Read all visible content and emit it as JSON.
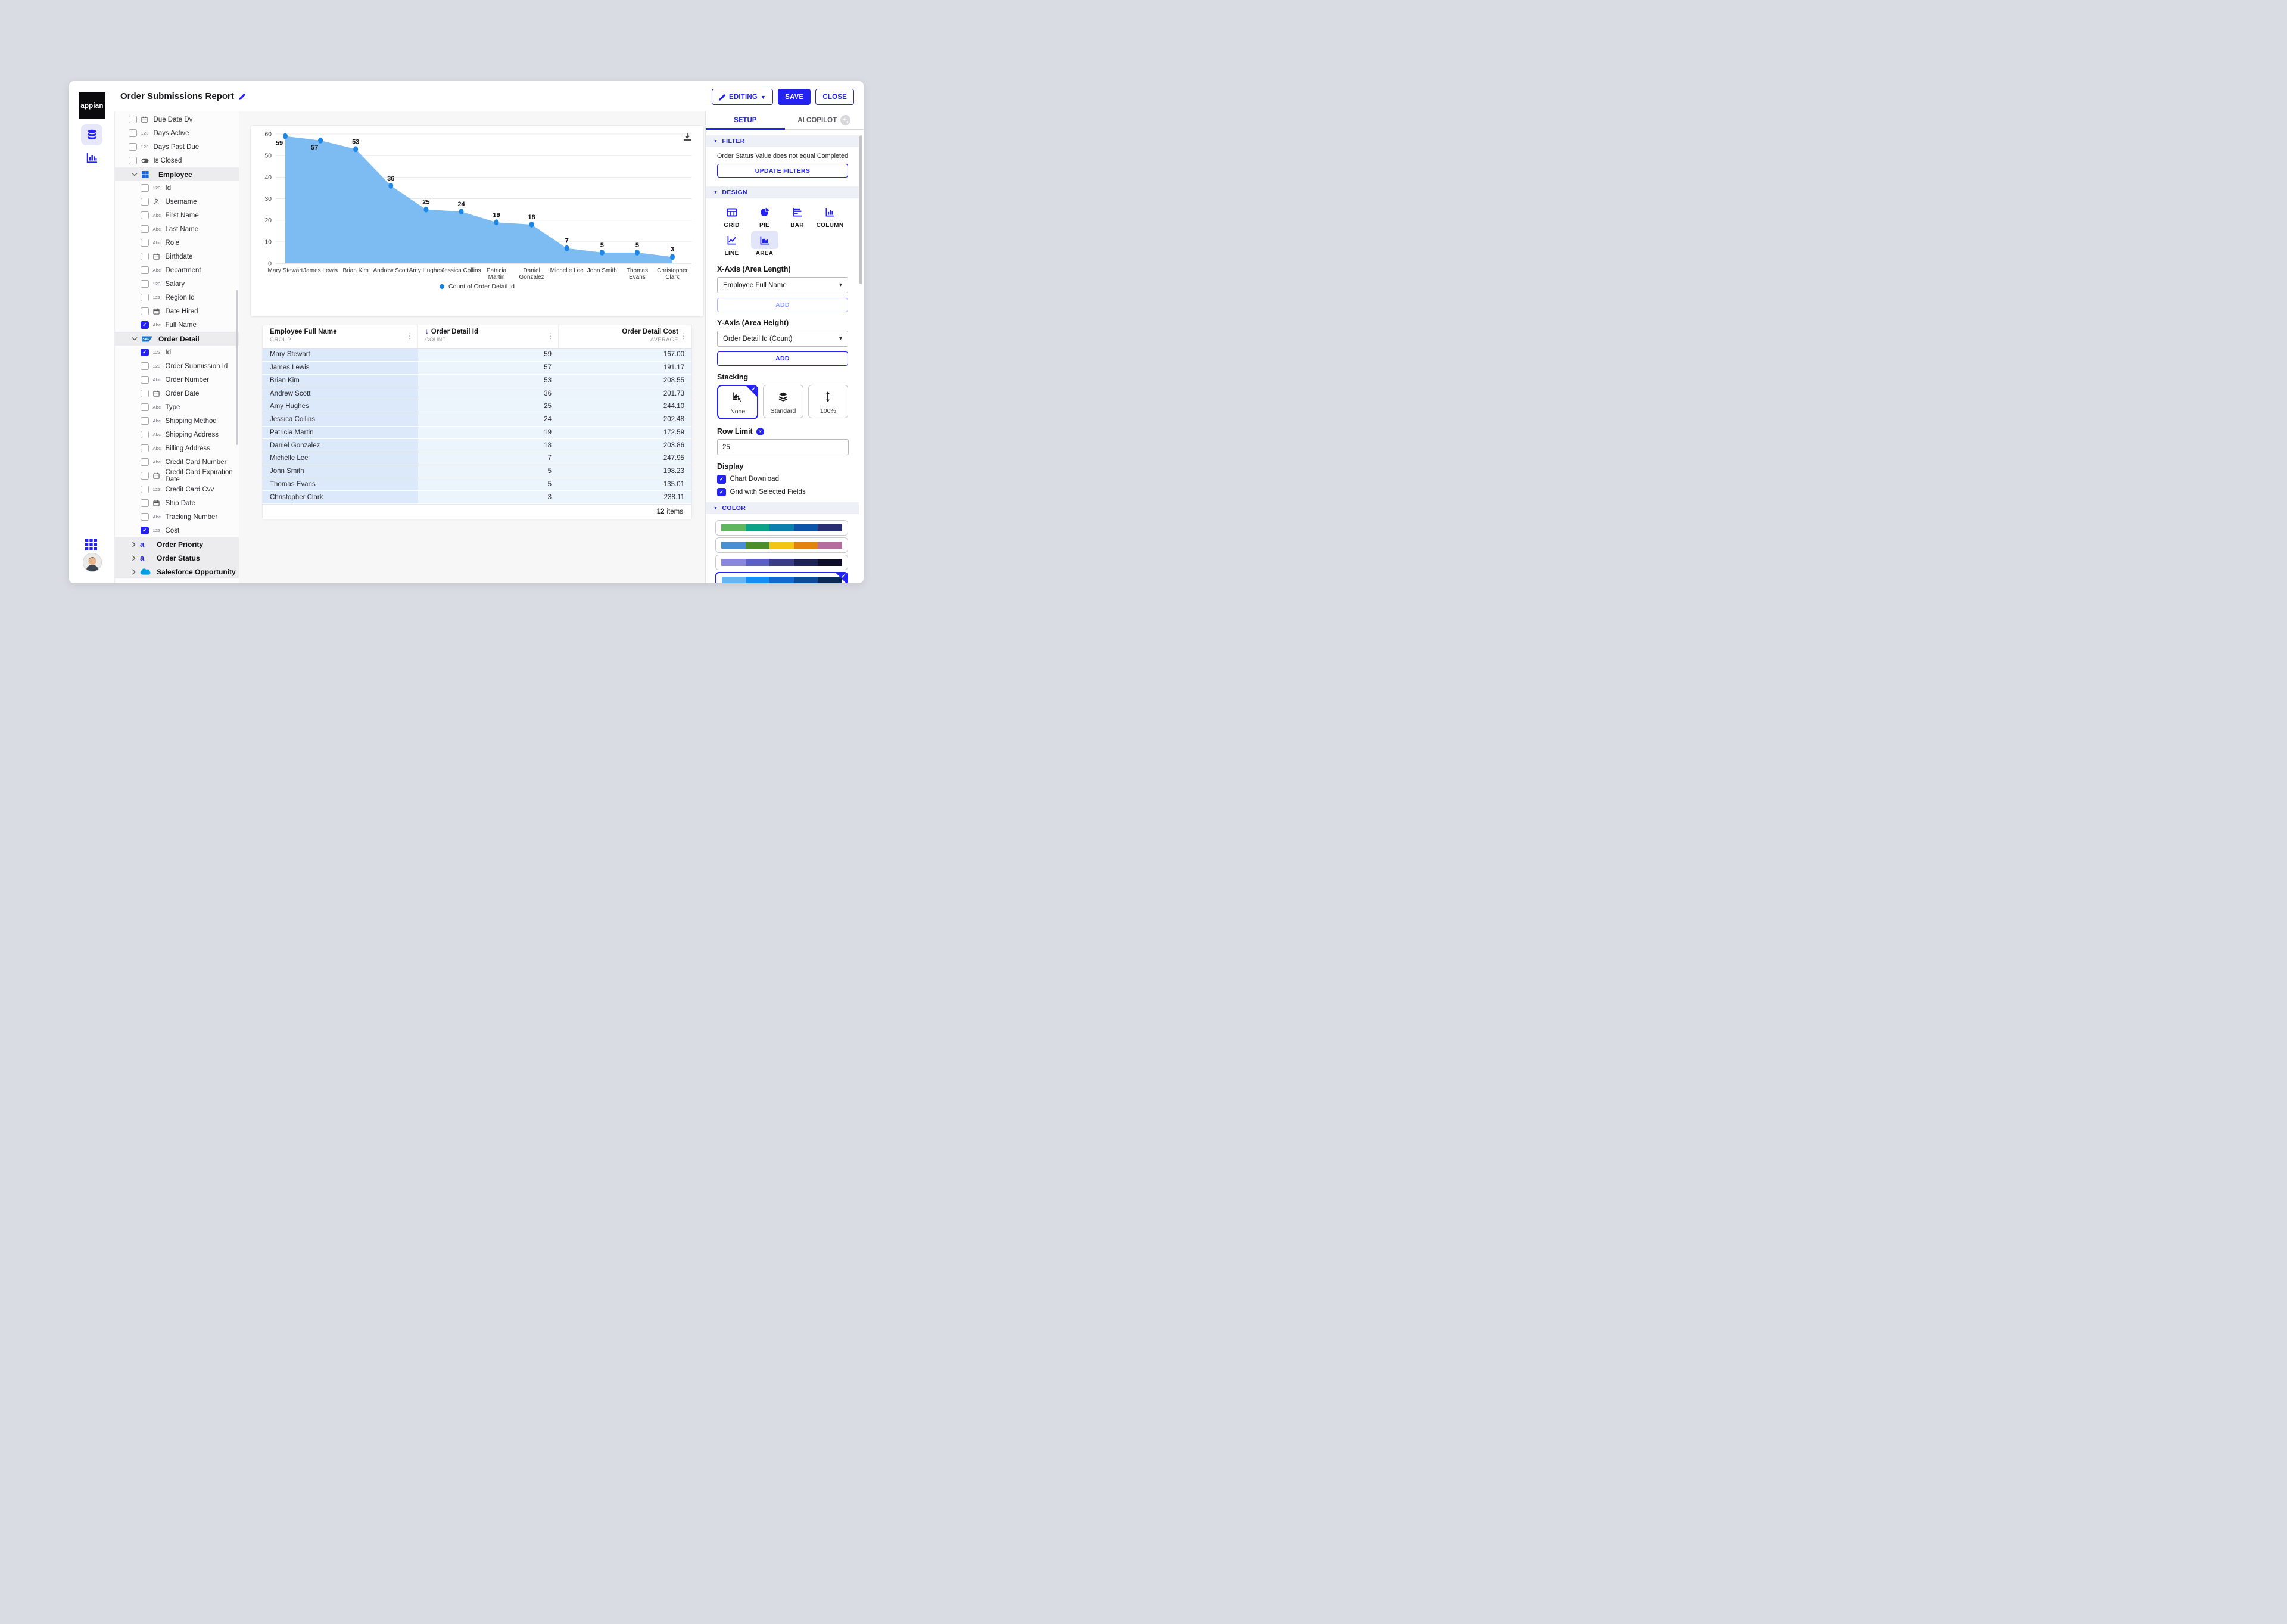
{
  "window": {
    "title": "Order Submissions Report"
  },
  "header": {
    "editing": "EDITING",
    "save": "SAVE",
    "close": "CLOSE"
  },
  "fields_panel": {
    "items": [
      {
        "kind": "field",
        "level": 0,
        "type": "date",
        "label": "Due Date Dv",
        "checked": false
      },
      {
        "kind": "field",
        "level": 0,
        "type": "number",
        "label": "Days Active",
        "checked": false
      },
      {
        "kind": "field",
        "level": 0,
        "type": "number",
        "label": "Days Past Due",
        "checked": false
      },
      {
        "kind": "field",
        "level": 0,
        "type": "boolean",
        "label": "Is Closed",
        "checked": false
      },
      {
        "kind": "section",
        "icon": "windows",
        "label": "Employee",
        "expanded": true
      },
      {
        "kind": "field",
        "level": 1,
        "type": "number",
        "label": "Id",
        "checked": false
      },
      {
        "kind": "field",
        "level": 1,
        "type": "user",
        "label": "Username",
        "checked": false
      },
      {
        "kind": "field",
        "level": 1,
        "type": "text",
        "label": "First Name",
        "checked": false
      },
      {
        "kind": "field",
        "level": 1,
        "type": "text",
        "label": "Last Name",
        "checked": false
      },
      {
        "kind": "field",
        "level": 1,
        "type": "text",
        "label": "Role",
        "checked": false
      },
      {
        "kind": "field",
        "level": 1,
        "type": "date",
        "label": "Birthdate",
        "checked": false
      },
      {
        "kind": "field",
        "level": 1,
        "type": "text",
        "label": "Department",
        "checked": false
      },
      {
        "kind": "field",
        "level": 1,
        "type": "number",
        "label": "Salary",
        "checked": false
      },
      {
        "kind": "field",
        "level": 1,
        "type": "number",
        "label": "Region Id",
        "checked": false
      },
      {
        "kind": "field",
        "level": 1,
        "type": "date",
        "label": "Date Hired",
        "checked": false
      },
      {
        "kind": "field",
        "level": 1,
        "type": "text",
        "label": "Full Name",
        "checked": true
      },
      {
        "kind": "section",
        "icon": "sap",
        "label": "Order Detail",
        "expanded": true
      },
      {
        "kind": "field",
        "level": 1,
        "type": "number",
        "label": "Id",
        "checked": true
      },
      {
        "kind": "field",
        "level": 1,
        "type": "number",
        "label": "Order Submission Id",
        "checked": false
      },
      {
        "kind": "field",
        "level": 1,
        "type": "text",
        "label": "Order Number",
        "checked": false
      },
      {
        "kind": "field",
        "level": 1,
        "type": "date",
        "label": "Order Date",
        "checked": false
      },
      {
        "kind": "field",
        "level": 1,
        "type": "text",
        "label": "Type",
        "checked": false
      },
      {
        "kind": "field",
        "level": 1,
        "type": "text",
        "label": "Shipping Method",
        "checked": false
      },
      {
        "kind": "field",
        "level": 1,
        "type": "text",
        "label": "Shipping Address",
        "checked": false
      },
      {
        "kind": "field",
        "level": 1,
        "type": "text",
        "label": "Billing Address",
        "checked": false
      },
      {
        "kind": "field",
        "level": 1,
        "type": "text",
        "label": "Credit Card Number",
        "checked": false
      },
      {
        "kind": "field",
        "level": 1,
        "type": "date",
        "label": "Credit Card Expiration Date",
        "checked": false
      },
      {
        "kind": "field",
        "level": 1,
        "type": "number",
        "label": "Credit Card Cvv",
        "checked": false
      },
      {
        "kind": "field",
        "level": 1,
        "type": "date",
        "label": "Ship Date",
        "checked": false
      },
      {
        "kind": "field",
        "level": 1,
        "type": "text",
        "label": "Tracking Number",
        "checked": false
      },
      {
        "kind": "field",
        "level": 1,
        "type": "number",
        "label": "Cost",
        "checked": true
      },
      {
        "kind": "section",
        "icon": "appian",
        "label": "Order Priority",
        "expanded": false
      },
      {
        "kind": "section",
        "icon": "appian",
        "label": "Order Status",
        "expanded": false
      },
      {
        "kind": "section",
        "icon": "salesforce",
        "label": "Salesforce Opportunity",
        "expanded": false
      }
    ]
  },
  "chart_data": {
    "type": "area",
    "categories": [
      "Mary Stewart",
      "James Lewis",
      "Brian Kim",
      "Andrew Scott",
      "Amy Hughes",
      "Jessica Collins",
      "Patricia Martin",
      "Daniel Gonzalez",
      "Michelle Lee",
      "John Smith",
      "Thomas Evans",
      "Christopher Clark"
    ],
    "values": [
      59,
      57,
      53,
      36,
      25,
      24,
      19,
      18,
      7,
      5,
      5,
      3
    ],
    "series_name": "Count of Order Detail Id",
    "title": "",
    "xlabel": "",
    "ylabel": "",
    "ylim": [
      0,
      60
    ],
    "ytick_step": 10,
    "grid": true,
    "legend_position": "bottom",
    "area_color": "#7dbcf2",
    "marker_color": "#1e87e6"
  },
  "grid_card": {
    "columns": [
      {
        "title": "Employee Full Name",
        "subtitle": "GROUP",
        "align": "left",
        "sorted": false
      },
      {
        "title": "Order Detail Id",
        "subtitle": "COUNT",
        "align": "left",
        "sorted": true
      },
      {
        "title": "Order Detail Cost",
        "subtitle": "AVERAGE",
        "align": "right",
        "sorted": false
      }
    ],
    "rows": [
      [
        "Mary Stewart",
        "59",
        "167.00"
      ],
      [
        "James Lewis",
        "57",
        "191.17"
      ],
      [
        "Brian Kim",
        "53",
        "208.55"
      ],
      [
        "Andrew Scott",
        "36",
        "201.73"
      ],
      [
        "Amy Hughes",
        "25",
        "244.10"
      ],
      [
        "Jessica Collins",
        "24",
        "202.48"
      ],
      [
        "Patricia Martin",
        "19",
        "172.59"
      ],
      [
        "Daniel Gonzalez",
        "18",
        "203.86"
      ],
      [
        "Michelle Lee",
        "7",
        "247.95"
      ],
      [
        "John Smith",
        "5",
        "198.23"
      ],
      [
        "Thomas Evans",
        "5",
        "135.01"
      ],
      [
        "Christopher Clark",
        "3",
        "238.11"
      ]
    ],
    "footer": {
      "count": "12",
      "label": "items"
    }
  },
  "setup_panel": {
    "tabs": {
      "setup": "SETUP",
      "copilot": "AI COPILOT"
    },
    "filter": {
      "section": "FILTER",
      "description": "Order Status Value does not equal Completed",
      "update_button": "UPDATE FILTERS"
    },
    "design": {
      "section": "DESIGN",
      "options": [
        {
          "id": "grid",
          "label": "GRID",
          "selected": false
        },
        {
          "id": "pie",
          "label": "PIE",
          "selected": false
        },
        {
          "id": "bar",
          "label": "BAR",
          "selected": false
        },
        {
          "id": "column",
          "label": "COLUMN",
          "selected": false
        },
        {
          "id": "line",
          "label": "LINE",
          "selected": false
        },
        {
          "id": "area",
          "label": "AREA",
          "selected": true
        }
      ]
    },
    "x_axis": {
      "label": "X-Axis (Area Length)",
      "value": "Employee Full Name",
      "add_button": "ADD"
    },
    "y_axis": {
      "label": "Y-Axis (Area Height)",
      "value": "Order Detail Id (Count)",
      "add_button": "ADD"
    },
    "stacking": {
      "label": "Stacking",
      "options": [
        {
          "id": "none",
          "label": "None",
          "selected": true
        },
        {
          "id": "standard",
          "label": "Standard",
          "selected": false
        },
        {
          "id": "percent",
          "label": "100%",
          "selected": false
        }
      ]
    },
    "row_limit": {
      "label": "Row Limit",
      "value": "25"
    },
    "display": {
      "label": "Display",
      "options": [
        {
          "label": "Chart Download",
          "checked": true
        },
        {
          "label": "Grid with Selected Fields",
          "checked": true
        }
      ]
    },
    "color": {
      "section": "COLOR",
      "palettes": [
        {
          "colors": [
            "#5fb65f",
            "#0ba287",
            "#0b80ad",
            "#0d53a8",
            "#2a2f72"
          ],
          "selected": false
        },
        {
          "colors": [
            "#4a8fd3",
            "#4c8c2b",
            "#f2c413",
            "#e2820f",
            "#b56d9f"
          ],
          "selected": false
        },
        {
          "colors": [
            "#8a85dd",
            "#5c5fc4",
            "#383d85",
            "#1c2155",
            "#0b0e26"
          ],
          "selected": false
        },
        {
          "colors": [
            "#66b5f0",
            "#148df5",
            "#1268cf",
            "#0c4c96",
            "#092a56"
          ],
          "selected": true
        }
      ]
    }
  },
  "brand": {
    "logo_text": "appian",
    "primary_blue": "#2322f0",
    "chart_fill": "#7dbcf2",
    "chart_marker": "#1e87e6"
  }
}
